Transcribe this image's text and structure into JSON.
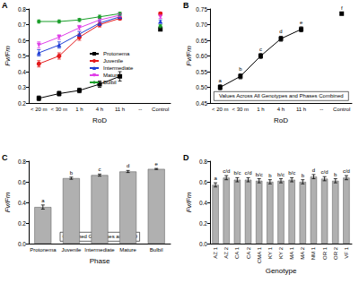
{
  "chart_data": [
    {
      "panel": "A",
      "type": "line",
      "x_label": "RoD",
      "y_label": "Fv/Fm",
      "categories": [
        "< 20 m",
        "< 30 m",
        "1 h",
        "4 h",
        "11 h",
        "--",
        "Control"
      ],
      "ylim": [
        0.2,
        0.8
      ],
      "yticks": [
        0.2,
        0.3,
        0.4,
        0.5,
        0.6,
        0.7,
        0.8
      ],
      "grid": false,
      "legend": "center",
      "series": [
        {
          "name": "Protonema",
          "color": "#000000",
          "marker": "square",
          "values": [
            0.23,
            0.26,
            0.28,
            0.32,
            0.37,
            null,
            0.67
          ],
          "errors": [
            0.015,
            0.015,
            0.015,
            0.02,
            0.03,
            null,
            0.01
          ]
        },
        {
          "name": "Juvenile",
          "color": "#e41a1c",
          "marker": "circle",
          "values": [
            0.45,
            0.5,
            0.62,
            0.7,
            0.74,
            null,
            0.77
          ],
          "errors": [
            0.02,
            0.02,
            0.02,
            0.015,
            0.01,
            null,
            0.01
          ]
        },
        {
          "name": "Intermediate",
          "color": "#1f3fd6",
          "marker": "triangle",
          "values": [
            0.52,
            0.57,
            0.64,
            0.71,
            0.75,
            null,
            0.72
          ],
          "errors": [
            0.02,
            0.02,
            0.015,
            0.015,
            0.01,
            null,
            0.01
          ]
        },
        {
          "name": "Mature",
          "color": "#e040e8",
          "marker": "triangle_down",
          "values": [
            0.57,
            0.62,
            0.68,
            0.73,
            0.76,
            null,
            0.75
          ],
          "errors": [
            0.02,
            0.015,
            0.015,
            0.01,
            0.01,
            null,
            0.01
          ]
        },
        {
          "name": "Bulbil",
          "color": "#1a9e2a",
          "marker": "diamond",
          "values": [
            0.72,
            0.72,
            0.73,
            0.75,
            0.77,
            null,
            0.69
          ],
          "errors": [
            0.01,
            0.01,
            0.01,
            0.01,
            0.01,
            null,
            0.01
          ]
        }
      ]
    },
    {
      "panel": "B",
      "type": "line",
      "x_label": "RoD",
      "y_label": "Fv/Fm",
      "categories": [
        "< 20 m",
        "< 30 m",
        "1 h",
        "4 h",
        "11 h",
        "--",
        "Control"
      ],
      "ylim": [
        0.45,
        0.75
      ],
      "yticks": [
        0.45,
        {
          "value": 0.5,
          "label": "0.50"
        },
        0.55,
        {
          "value": 0.6,
          "label": "0.60"
        },
        0.65,
        {
          "value": 0.7,
          "label": "0.70"
        },
        0.75
      ],
      "grid": false,
      "color": "#000000",
      "marker": "square",
      "values": [
        0.5,
        0.535,
        0.6,
        0.655,
        0.685,
        null,
        0.735
      ],
      "errors": [
        0.008,
        0.008,
        0.008,
        0.008,
        0.008,
        null,
        0.004
      ],
      "annotations": [
        "a",
        "b",
        "c",
        "d",
        "e",
        null,
        "f"
      ],
      "note": "Values Across All Genotypes and Phases Combined"
    },
    {
      "panel": "C",
      "type": "bar",
      "x_label": "Phase",
      "y_label": "Fv/Fm",
      "categories": [
        "Protonema",
        "Juvenile",
        "Intermediate",
        "Mature",
        "Bulbil"
      ],
      "ylim": [
        0,
        0.8
      ],
      "yticks": [
        {
          "value": 0,
          "label": "0.0"
        },
        0.2,
        0.4,
        0.6,
        0.8
      ],
      "grid": false,
      "color": "#b0b0b0",
      "values": [
        0.355,
        0.635,
        0.665,
        0.7,
        0.725
      ],
      "errors": [
        0.02,
        0.01,
        0.01,
        0.01,
        0.005
      ],
      "annotations": [
        "a",
        "b",
        "c",
        "d",
        "e"
      ],
      "note": "Combined Genotypes and RoD"
    },
    {
      "panel": "D",
      "type": "bar",
      "x_label": "Genotype",
      "y_label": "Fv/Fm",
      "categories": [
        "AZ 1",
        "AZ 2",
        "CA 1",
        "CA 2",
        "CMA 1",
        "KY 1",
        "KY 2",
        "MA 1",
        "MA 2",
        "NM 1",
        "OR 1",
        "OR 2",
        "VF 1"
      ],
      "ylim": [
        0,
        0.8
      ],
      "yticks": [
        {
          "value": 0,
          "label": "0.0"
        },
        0.2,
        0.4,
        0.6,
        0.8
      ],
      "grid": false,
      "color": "#b0b0b0",
      "values": [
        0.57,
        0.64,
        0.62,
        0.62,
        0.61,
        0.6,
        0.61,
        0.62,
        0.6,
        0.65,
        0.63,
        0.61,
        0.64
      ],
      "errors": [
        0.02,
        0.02,
        0.02,
        0.02,
        0.02,
        0.02,
        0.02,
        0.02,
        0.02,
        0.02,
        0.02,
        0.02,
        0.02
      ],
      "annotations": [
        "a",
        "c/d",
        "b/c",
        "c/d",
        "b/c",
        "b",
        "b/c",
        "b/c",
        "b",
        "d",
        "c/d",
        "b",
        "c/d"
      ]
    }
  ]
}
